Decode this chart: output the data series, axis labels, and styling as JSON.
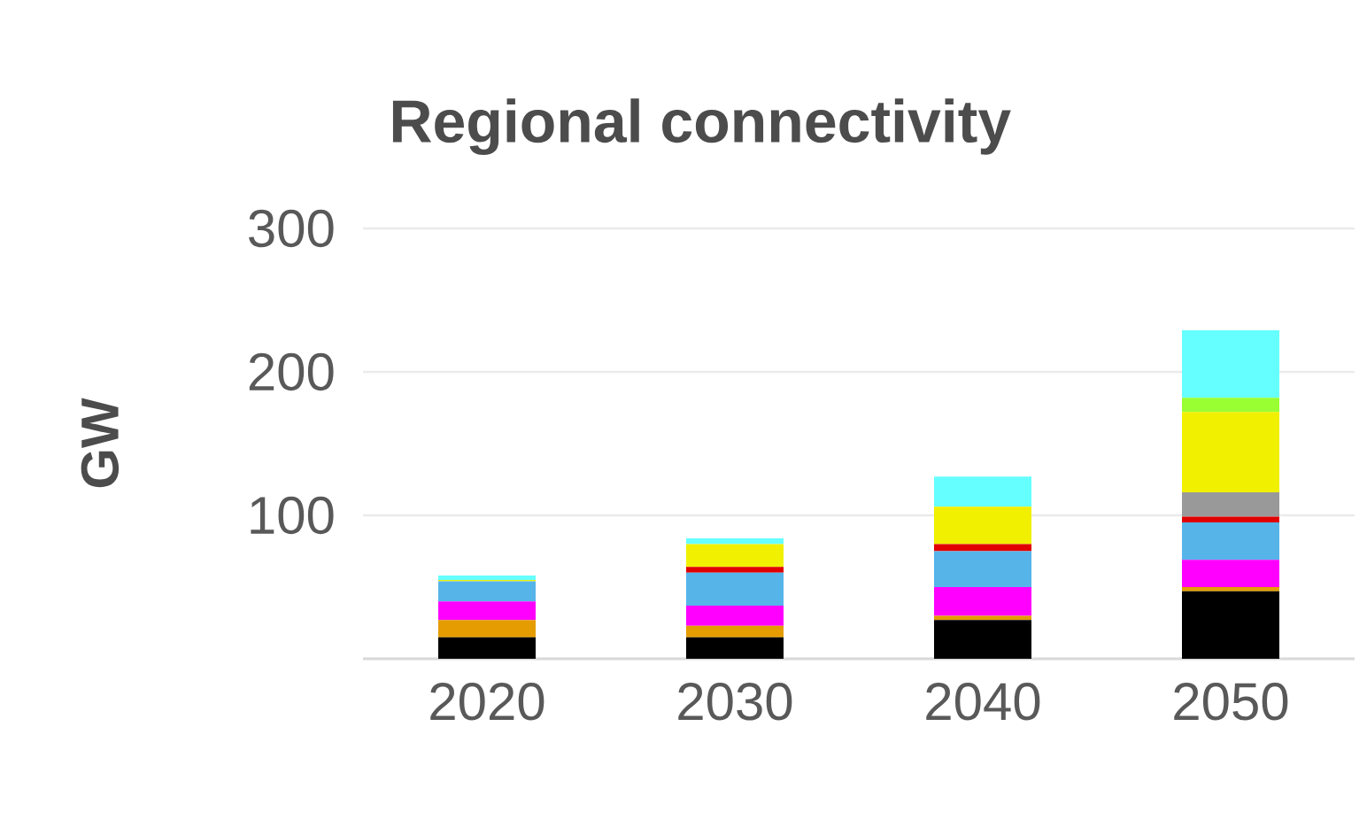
{
  "chart_data": {
    "type": "bar",
    "title": "Regional connectivity",
    "ylabel": "GW",
    "categories": [
      "2020",
      "2030",
      "2040",
      "2050"
    ],
    "stacked": true,
    "series": [
      {
        "color": "#000000",
        "values": [
          15,
          15,
          27,
          47
        ]
      },
      {
        "color": "#e59c00",
        "values": [
          12,
          8,
          3,
          3
        ]
      },
      {
        "color": "#ff00ff",
        "values": [
          13,
          14,
          20,
          19
        ]
      },
      {
        "color": "#56b4e9",
        "values": [
          14,
          23,
          25,
          26
        ]
      },
      {
        "color": "#e00000",
        "values": [
          0,
          4,
          5,
          4
        ]
      },
      {
        "color": "#999999",
        "values": [
          0,
          0,
          0,
          17
        ]
      },
      {
        "color": "#f0f000",
        "values": [
          1,
          16,
          26,
          56
        ]
      },
      {
        "color": "#99ff33",
        "values": [
          0,
          0,
          0,
          10
        ]
      },
      {
        "color": "#66ffff",
        "values": [
          3,
          4,
          21,
          47
        ]
      }
    ],
    "ylim": [
      0,
      300
    ],
    "yticks": [
      {
        "value": 0,
        "label": null
      },
      100,
      200,
      300
    ],
    "grid": "y"
  }
}
